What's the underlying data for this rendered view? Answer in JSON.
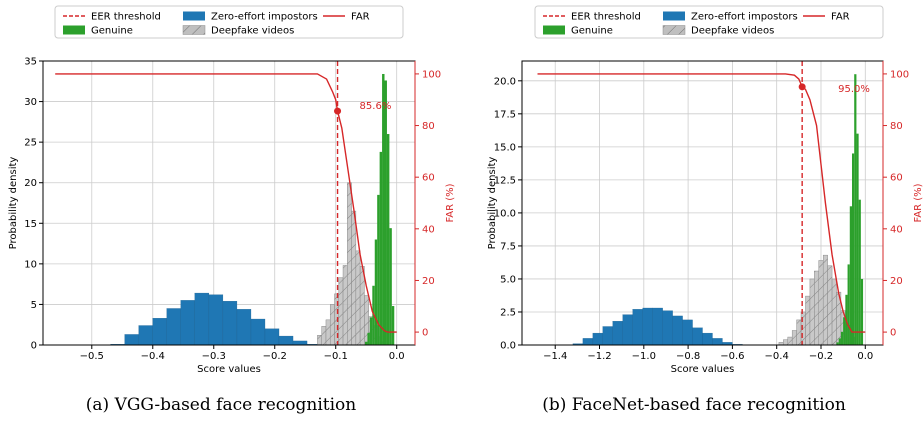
{
  "colors": {
    "eer": "#d62728",
    "far": "#d62728",
    "genuine": "#2ca02c",
    "zero_effort": "#1f77b4",
    "deepfake": "#bfbfbf",
    "grid": "#cccccc",
    "axis": "#000000"
  },
  "chart_data": [
    {
      "type": "bar",
      "caption": "(a) VGG-based face recognition",
      "xlabel": "Score values",
      "ylabel": "Probability density",
      "y2label": "FAR (%)",
      "xlim": [
        -0.58,
        0.03
      ],
      "ylim": [
        0,
        35
      ],
      "y2lim": [
        -5,
        105
      ],
      "xticks": [
        -0.5,
        -0.4,
        -0.3,
        -0.2,
        -0.1,
        0.0
      ],
      "xtick_labels": [
        "−0.5",
        "−0.4",
        "−0.3",
        "−0.2",
        "−0.1",
        "0.0"
      ],
      "yticks": [
        0,
        5,
        10,
        15,
        20,
        25,
        30,
        35
      ],
      "ytick_labels": [
        "0",
        "5",
        "10",
        "15",
        "20",
        "25",
        "30",
        "35"
      ],
      "y2ticks": [
        0,
        20,
        40,
        60,
        80,
        100
      ],
      "y2tick_labels": [
        "0",
        "20",
        "40",
        "60",
        "80",
        "100"
      ],
      "grid": true,
      "legend": {
        "position": "top",
        "entries": [
          "EER threshold",
          "Zero-effort impostors",
          "FAR",
          "Genuine",
          "Deepfake videos"
        ]
      },
      "eer_threshold": -0.097,
      "eer_far": 85.6,
      "eer_label": "85.6%",
      "series": [
        {
          "name": "Zero-effort impostors",
          "kind": "hist",
          "edges": [
            -0.469,
            -0.446,
            -0.423,
            -0.4,
            -0.377,
            -0.354,
            -0.331,
            -0.308,
            -0.285,
            -0.262,
            -0.239,
            -0.216,
            -0.193,
            -0.17,
            -0.147,
            -0.124,
            -0.101
          ],
          "values": [
            0.1,
            1.3,
            2.4,
            3.3,
            4.5,
            5.5,
            6.4,
            6.2,
            5.4,
            4.4,
            3.2,
            2.0,
            1.1,
            0.5,
            0.1,
            0.05
          ]
        },
        {
          "name": "Deepfake videos",
          "kind": "hist",
          "edges": [
            -0.13,
            -0.123,
            -0.116,
            -0.109,
            -0.102,
            -0.095,
            -0.088,
            -0.081,
            -0.074,
            -0.067,
            -0.06,
            -0.053,
            -0.046,
            -0.039,
            -0.032,
            -0.025,
            -0.018
          ],
          "values": [
            1.2,
            2.3,
            3.1,
            5.0,
            6.3,
            8.3,
            9.8,
            20.0,
            16.5,
            11.6,
            9.7,
            6.1,
            3.5,
            2.4,
            1.0,
            0.4
          ]
        },
        {
          "name": "Genuine",
          "kind": "hist",
          "edges": [
            -0.052,
            -0.048,
            -0.044,
            -0.04,
            -0.036,
            -0.032,
            -0.028,
            -0.024,
            -0.02,
            -0.016,
            -0.012,
            -0.008,
            -0.004
          ],
          "values": [
            0.4,
            1.5,
            3.4,
            7.3,
            13.0,
            18.5,
            23.8,
            33.4,
            32.6,
            26.0,
            14.4,
            4.8
          ]
        },
        {
          "name": "FAR",
          "kind": "line",
          "x": [
            -0.56,
            -0.13,
            -0.115,
            -0.105,
            -0.1,
            -0.097,
            -0.09,
            -0.08,
            -0.07,
            -0.06,
            -0.05,
            -0.04,
            -0.03,
            -0.02,
            -0.015,
            -0.01,
            -0.008,
            0.0
          ],
          "y": [
            100,
            100,
            98,
            93,
            90,
            85.6,
            79,
            63,
            47,
            30,
            18,
            8,
            3,
            0.5,
            0,
            0,
            0,
            0
          ]
        }
      ]
    },
    {
      "type": "bar",
      "caption": "(b) FaceNet-based face recognition",
      "xlabel": "Score values",
      "ylabel": "Probability density",
      "y2label": "FAR (%)",
      "xlim": [
        -1.55,
        0.08
      ],
      "ylim": [
        0,
        21.5
      ],
      "y2lim": [
        -5,
        105
      ],
      "xticks": [
        -1.4,
        -1.2,
        -1.0,
        -0.8,
        -0.6,
        -0.4,
        -0.2,
        0.0
      ],
      "xtick_labels": [
        "−1.4",
        "−1.2",
        "−1.0",
        "−0.8",
        "−0.6",
        "−0.4",
        "−0.2",
        "0.0"
      ],
      "yticks": [
        0,
        2.5,
        5,
        7.5,
        10,
        12.5,
        15,
        17.5,
        20
      ],
      "ytick_labels": [
        "0.0",
        "2.5",
        "5.0",
        "7.5",
        "10.0",
        "12.5",
        "15.0",
        "17.5",
        "20.0"
      ],
      "y2ticks": [
        0,
        20,
        40,
        60,
        80,
        100
      ],
      "y2tick_labels": [
        "0",
        "20",
        "40",
        "60",
        "80",
        "100"
      ],
      "grid": true,
      "legend": {
        "position": "top",
        "entries": [
          "EER threshold",
          "Zero-effort impostors",
          "FAR",
          "Genuine",
          "Deepfake videos"
        ]
      },
      "eer_threshold": -0.285,
      "eer_far": 95.0,
      "eer_label": "95.0%",
      "series": [
        {
          "name": "Zero-effort impostors",
          "kind": "hist",
          "edges": [
            -1.32,
            -1.275,
            -1.23,
            -1.185,
            -1.14,
            -1.095,
            -1.05,
            -1.005,
            -0.96,
            -0.915,
            -0.87,
            -0.825,
            -0.78,
            -0.735,
            -0.69,
            -0.645,
            -0.6,
            -0.555
          ],
          "values": [
            0.1,
            0.5,
            0.9,
            1.4,
            1.8,
            2.3,
            2.7,
            2.8,
            2.8,
            2.6,
            2.2,
            1.9,
            1.3,
            0.9,
            0.5,
            0.2,
            0.05
          ]
        },
        {
          "name": "Deepfake videos",
          "kind": "hist",
          "edges": [
            -0.39,
            -0.37,
            -0.35,
            -0.33,
            -0.31,
            -0.29,
            -0.27,
            -0.25,
            -0.23,
            -0.21,
            -0.19,
            -0.17,
            -0.15,
            -0.13,
            -0.11,
            -0.09,
            -0.07,
            -0.05
          ],
          "values": [
            0.2,
            0.4,
            0.6,
            1.1,
            1.9,
            2.5,
            3.7,
            5.0,
            5.6,
            6.4,
            6.8,
            6.0,
            5.0,
            4.0,
            2.6,
            1.5,
            0.6
          ]
        },
        {
          "name": "Genuine",
          "kind": "hist",
          "edges": [
            -0.13,
            -0.12,
            -0.11,
            -0.1,
            -0.09,
            -0.08,
            -0.07,
            -0.06,
            -0.05,
            -0.04,
            -0.03,
            -0.02,
            -0.01
          ],
          "values": [
            0.2,
            0.5,
            1.0,
            2.1,
            3.8,
            6.1,
            10.5,
            14.5,
            20.5,
            16.0,
            11.0,
            5.0
          ]
        },
        {
          "name": "FAR",
          "kind": "line",
          "x": [
            -1.48,
            -0.36,
            -0.32,
            -0.3,
            -0.285,
            -0.27,
            -0.25,
            -0.22,
            -0.2,
            -0.18,
            -0.15,
            -0.12,
            -0.1,
            -0.08,
            -0.06,
            -0.04,
            0.0
          ],
          "y": [
            100,
            100,
            99.5,
            98,
            95.0,
            94,
            90,
            80,
            65,
            50,
            30,
            15,
            8,
            3,
            0,
            0,
            0
          ]
        }
      ]
    }
  ]
}
